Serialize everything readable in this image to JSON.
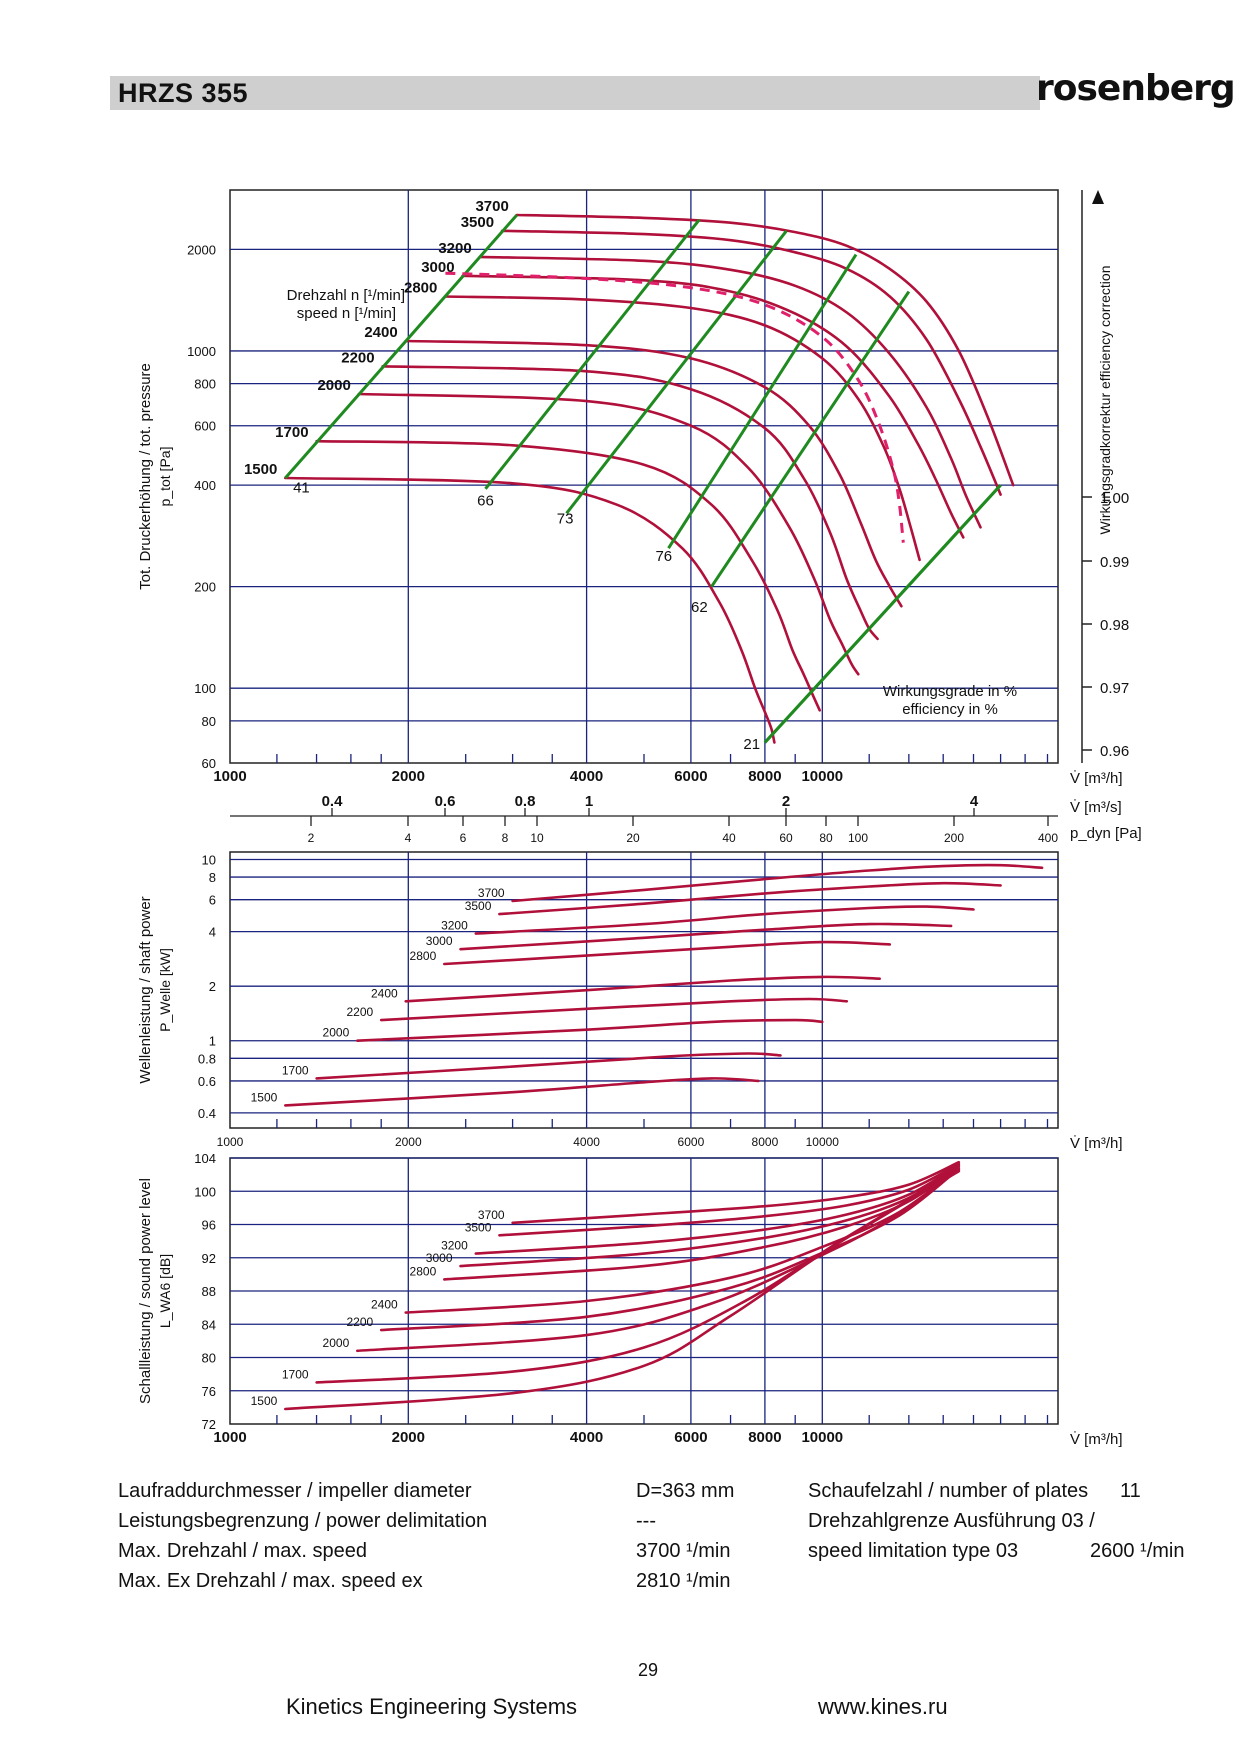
{
  "header": {
    "title": "HRZS 355",
    "brand": "rosenberg"
  },
  "chart_data": [
    {
      "type": "line",
      "id": "pressure",
      "xlabel": "V̇ [m³/h]",
      "xscale": "log",
      "xlim": [
        1000,
        25000
      ],
      "xticks": [
        1000,
        2000,
        4000,
        6000,
        8000,
        10000
      ],
      "ylabel": "Tot. Druckerhöhung / tot. pressure",
      "ylabel2": "p_tot [Pa]",
      "yscale": "log",
      "ylim": [
        60,
        3000
      ],
      "yticks": [
        60,
        80,
        100,
        200,
        400,
        600,
        800,
        1000,
        2000
      ],
      "right_label": "Wirkungsgradkorrektur efficiency correction",
      "right_ticks": [
        "1.00",
        "0.99",
        "0.98",
        "0.97",
        "0.96"
      ],
      "speed_label_de": "Drehzahl n [¹/min]",
      "speed_label_en": "speed n [¹/min]",
      "efficiency_label_de": "Wirkungsgrade in %",
      "efficiency_label_en": "efficiency in %",
      "efficiency_values": [
        "41",
        "66",
        "73",
        "76",
        "62",
        "21"
      ],
      "series": [
        {
          "name": "3700",
          "x": [
            3050,
            5000,
            7000,
            9000,
            11000,
            13000,
            15000,
            17000,
            19000,
            21000
          ],
          "y": [
            2530,
            2480,
            2400,
            2250,
            2050,
            1750,
            1400,
            1000,
            640,
            400
          ]
        },
        {
          "name": "3500",
          "x": [
            2880,
            5000,
            7000,
            9000,
            11000,
            13000,
            15000,
            17000,
            18500,
            20000
          ],
          "y": [
            2270,
            2220,
            2130,
            1960,
            1750,
            1450,
            1080,
            720,
            520,
            375
          ]
        },
        {
          "name": "3200",
          "x": [
            2640,
            5000,
            7000,
            9000,
            11000,
            13000,
            15000,
            16500,
            17500,
            18500
          ],
          "y": [
            1900,
            1850,
            1740,
            1560,
            1300,
            980,
            680,
            480,
            370,
            300
          ]
        },
        {
          "name": "3000",
          "x": [
            2470,
            5000,
            7000,
            9000,
            11000,
            13000,
            14500,
            15500,
            16500,
            17300
          ],
          "y": [
            1670,
            1620,
            1500,
            1290,
            1030,
            730,
            530,
            420,
            330,
            280
          ]
        },
        {
          "name": "2800",
          "x": [
            2310,
            4000,
            6000,
            8000,
            10000,
            11500,
            12700,
            13500,
            14100,
            14600
          ],
          "y": [
            1450,
            1420,
            1340,
            1190,
            950,
            720,
            520,
            390,
            300,
            240
          ]
        },
        {
          "name": "2400",
          "x": [
            1980,
            4000,
            6000,
            8000,
            9500,
            10700,
            11600,
            12300,
            13000,
            13600
          ],
          "y": [
            1070,
            1040,
            950,
            780,
            600,
            430,
            310,
            240,
            200,
            175
          ]
        },
        {
          "name": "2200",
          "x": [
            1810,
            4000,
            6000,
            8000,
            9300,
            10300,
            11000,
            11600,
            12000,
            12400
          ],
          "y": [
            900,
            870,
            770,
            590,
            420,
            290,
            210,
            170,
            150,
            140
          ]
        },
        {
          "name": "2000",
          "x": [
            1650,
            4000,
            6000,
            7500,
            8800,
            9700,
            10300,
            10800,
            11200,
            11500
          ],
          "y": [
            745,
            710,
            600,
            450,
            300,
            210,
            160,
            135,
            118,
            110
          ]
        },
        {
          "name": "1700",
          "x": [
            1400,
            3000,
            5000,
            6500,
            7600,
            8400,
            8900,
            9300,
            9650,
            9900
          ],
          "y": [
            540,
            525,
            460,
            350,
            240,
            170,
            130,
            110,
            95,
            86
          ]
        },
        {
          "name": "1500",
          "x": [
            1240,
            3000,
            4500,
            5800,
            6700,
            7300,
            7700,
            8000,
            8200,
            8300
          ],
          "y": [
            420,
            405,
            350,
            260,
            180,
            130,
            100,
            85,
            76,
            69
          ]
        }
      ]
    },
    {
      "type": "line",
      "id": "shaft_power",
      "xlabel": "V̇ [m³/h]",
      "xscale": "log",
      "xlim": [
        1000,
        25000
      ],
      "xticks": [
        1000,
        2000,
        4000,
        6000,
        8000,
        10000
      ],
      "ylabel": "Wellenleistung / shaft power",
      "ylabel2": "P_Welle [kW]",
      "yscale": "log",
      "ylim": [
        0.33,
        11
      ],
      "yticks": [
        0.4,
        0.6,
        0.8,
        1,
        2,
        4,
        6,
        8,
        10
      ],
      "series": [
        {
          "name": "3700",
          "x": [
            3000,
            5000,
            8000,
            12000,
            16000,
            20000,
            23500
          ],
          "y": [
            5.9,
            6.8,
            7.8,
            8.7,
            9.2,
            9.3,
            9.0
          ]
        },
        {
          "name": "3500",
          "x": [
            2850,
            5000,
            8000,
            12000,
            16000,
            20000
          ],
          "y": [
            5.0,
            5.7,
            6.5,
            7.1,
            7.4,
            7.2
          ]
        },
        {
          "name": "3200",
          "x": [
            2600,
            5000,
            8000,
            12000,
            15000,
            18000
          ],
          "y": [
            3.9,
            4.4,
            5.0,
            5.4,
            5.5,
            5.3
          ]
        },
        {
          "name": "3000",
          "x": [
            2450,
            5000,
            8000,
            12000,
            16500
          ],
          "y": [
            3.2,
            3.7,
            4.1,
            4.4,
            4.3
          ]
        },
        {
          "name": "2800",
          "x": [
            2300,
            4000,
            7000,
            10000,
            13000
          ],
          "y": [
            2.65,
            2.95,
            3.3,
            3.5,
            3.4
          ]
        },
        {
          "name": "2400",
          "x": [
            1980,
            4000,
            7000,
            10000,
            12500
          ],
          "y": [
            1.65,
            1.9,
            2.15,
            2.25,
            2.2
          ]
        },
        {
          "name": "2200",
          "x": [
            1800,
            4000,
            7000,
            9500,
            11000
          ],
          "y": [
            1.3,
            1.5,
            1.65,
            1.7,
            1.65
          ]
        },
        {
          "name": "2000",
          "x": [
            1640,
            4000,
            6500,
            9000,
            10000
          ],
          "y": [
            1.0,
            1.15,
            1.27,
            1.3,
            1.27
          ]
        },
        {
          "name": "1700",
          "x": [
            1400,
            3000,
            5500,
            7500,
            8500
          ],
          "y": [
            0.62,
            0.72,
            0.82,
            0.85,
            0.83
          ]
        },
        {
          "name": "1500",
          "x": [
            1240,
            3000,
            5000,
            6500,
            7800
          ],
          "y": [
            0.44,
            0.52,
            0.59,
            0.62,
            0.6
          ]
        }
      ]
    },
    {
      "type": "line",
      "id": "sound_power",
      "xlabel": "V̇ [m³/h]",
      "xscale": "log",
      "xlim": [
        1000,
        25000
      ],
      "xticks": [
        1000,
        2000,
        4000,
        6000,
        8000,
        10000
      ],
      "ylabel": "Schallleistung / sound power level",
      "ylabel2": "L_WA6 [dB]",
      "ylim": [
        72,
        104
      ],
      "yticks": [
        72,
        76,
        80,
        84,
        88,
        92,
        96,
        100,
        104
      ],
      "series": [
        {
          "name": "3700",
          "x": [
            3000,
            5000,
            8000,
            11000,
            14000,
            17000
          ],
          "y": [
            96.2,
            97.2,
            98.2,
            99.3,
            100.8,
            103.5
          ]
        },
        {
          "name": "3500",
          "x": [
            2850,
            5000,
            8000,
            11000,
            14000,
            17000
          ],
          "y": [
            94.7,
            95.8,
            97.0,
            98.3,
            100.2,
            103.3
          ]
        },
        {
          "name": "3200",
          "x": [
            2600,
            5000,
            8000,
            11000,
            14000,
            17000
          ],
          "y": [
            92.5,
            93.8,
            95.4,
            97.2,
            99.6,
            103.2
          ]
        },
        {
          "name": "3000",
          "x": [
            2450,
            5000,
            8000,
            11000,
            14000,
            17000
          ],
          "y": [
            91.0,
            92.5,
            94.4,
            96.5,
            99.2,
            103.1
          ]
        },
        {
          "name": "2800",
          "x": [
            2300,
            5000,
            8000,
            11000,
            14000,
            17000
          ],
          "y": [
            89.4,
            91.0,
            93.3,
            95.8,
            98.8,
            103.0
          ]
        },
        {
          "name": "2400",
          "x": [
            1980,
            4000,
            7000,
            10000,
            13500,
            17000
          ],
          "y": [
            85.4,
            86.8,
            89.6,
            93.3,
            97.5,
            102.8
          ]
        },
        {
          "name": "2200",
          "x": [
            1800,
            4000,
            7000,
            10000,
            13500,
            17000
          ],
          "y": [
            83.3,
            84.9,
            88.4,
            92.6,
            97.1,
            102.7
          ]
        },
        {
          "name": "2000",
          "x": [
            1640,
            4000,
            6500,
            9500,
            13000,
            17000
          ],
          "y": [
            80.8,
            82.7,
            86.5,
            91.6,
            96.6,
            102.6
          ]
        },
        {
          "name": "1700",
          "x": [
            1400,
            3000,
            5000,
            7500,
            11000,
            17000
          ],
          "y": [
            77.0,
            78.3,
            81.2,
            87.0,
            94.5,
            102.5
          ]
        },
        {
          "name": "1500",
          "x": [
            1240,
            3000,
            5000,
            7000,
            10500,
            17000
          ],
          "y": [
            73.8,
            75.7,
            79.0,
            85.0,
            93.5,
            102.4
          ]
        }
      ]
    }
  ],
  "axes_extra": {
    "pressure_x_ticks": [
      "1000",
      "2000",
      "4000",
      "6000",
      "8000",
      "10000"
    ],
    "power_x_ticks": [
      "1000",
      "2000",
      "4000",
      "6000",
      "8000",
      "10000"
    ],
    "sound_x_ticks": [
      "1000",
      "2000",
      "4000",
      "6000",
      "8000",
      "10000"
    ],
    "unit_m3h": "V̇ [m³/h]",
    "unit_m3s": "V̇ [m³/s]",
    "unit_pdyn": "p_dyn [Pa]",
    "m3s_ticks": [
      "0.4",
      "0.6",
      "0.8",
      "1",
      "2",
      "4"
    ],
    "pdyn_ticks": [
      "2",
      "4",
      "6",
      "8",
      "10",
      "20",
      "40",
      "60",
      "80",
      "100",
      "200",
      "400"
    ]
  },
  "specs": {
    "impeller_label": "Laufraddurchmesser / impeller diameter",
    "impeller_value": "D=363 mm",
    "power_label": "Leistungsbegrenzung / power delimitation",
    "power_value": "---",
    "max_speed_label": "Max. Drehzahl / max. speed",
    "max_speed_value": "3700 ¹/min",
    "max_ex_label": "Max. Ex Drehzahl / max. speed ex",
    "max_ex_value": "2810 ¹/min",
    "plates_label": "Schaufelzahl / number of plates",
    "plates_value": "11",
    "limit_label_1": "Drehzahlgrenze Ausführung 03 /",
    "limit_label_2": "speed limitation type 03",
    "limit_value": "2600 ¹/min"
  },
  "footer": {
    "page_number": "29",
    "company": "Kinetics Engineering Systems",
    "website": "www.kines.ru"
  },
  "colors": {
    "curve": "#b0103a",
    "efficiency": "#1f8a1f",
    "grid": "#1a237e",
    "dashed": "#e0206a"
  }
}
